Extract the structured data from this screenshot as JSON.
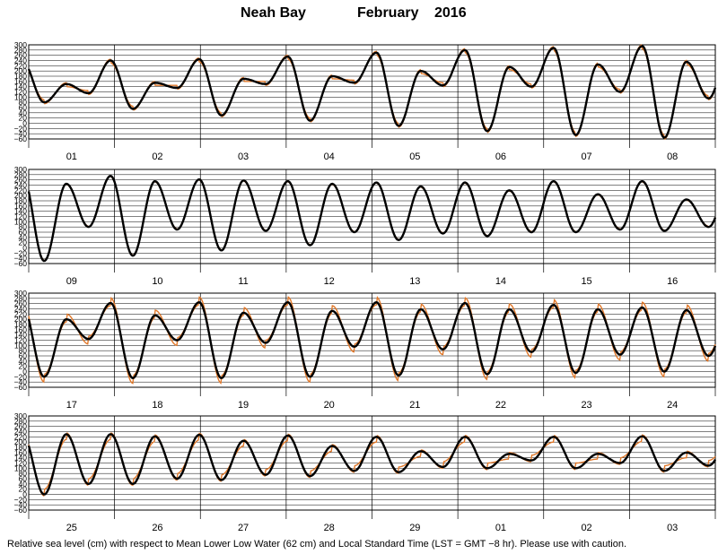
{
  "title": {
    "station": "Neah Bay",
    "month": "February",
    "year": "2016"
  },
  "caption": "Relative sea level (cm) with respect to Mean Lower Low Water (62 cm) and Local Standard Time (LST = GMT −8 hr). Please use with caution.",
  "colors": {
    "observed": "#000000",
    "predicted": "#e0782a",
    "grid": "#000000"
  },
  "chart_data": {
    "type": "line",
    "ylim": [
      -60,
      300
    ],
    "yticks": [
      300,
      280,
      260,
      240,
      220,
      200,
      180,
      160,
      140,
      120,
      100,
      80,
      60,
      40,
      20,
      0,
      -20,
      -40,
      -60
    ],
    "y_unit": "cm",
    "grid": true,
    "series": [
      {},
      {}
    ],
    "panels": [
      {
        "days": [
          "01",
          "02",
          "03",
          "04",
          "05",
          "06",
          "07",
          "08"
        ],
        "start_phase": 0.3,
        "end_phase": 31.3,
        "high_pairs": [
          [
            240,
            150
          ],
          [
            240,
            155
          ],
          [
            245,
            170
          ],
          [
            255,
            180
          ],
          [
            270,
            200
          ],
          [
            280,
            215
          ],
          [
            288,
            225
          ],
          [
            295,
            235
          ]
        ],
        "low_pairs": [
          [
            80,
            115
          ],
          [
            55,
            135
          ],
          [
            30,
            150
          ],
          [
            10,
            155
          ],
          [
            -10,
            145
          ],
          [
            -30,
            140
          ],
          [
            -45,
            120
          ],
          [
            -55,
            95
          ]
        ],
        "predicted_offset": [
          -10,
          -5
        ]
      },
      {
        "days": [
          "09",
          "10",
          "11",
          "12",
          "13",
          "14",
          "15",
          "16"
        ],
        "start_phase": 0.3,
        "end_phase": 31.3,
        "high_pairs": [
          [
            285,
            245
          ],
          [
            275,
            255
          ],
          [
            262,
            258
          ],
          [
            255,
            245
          ],
          [
            250,
            235
          ],
          [
            250,
            220
          ],
          [
            255,
            205
          ],
          [
            255,
            185
          ]
        ],
        "low_pairs": [
          [
            -50,
            80
          ],
          [
            -30,
            70
          ],
          [
            -10,
            65
          ],
          [
            10,
            60
          ],
          [
            30,
            55
          ],
          [
            45,
            60
          ],
          [
            60,
            70
          ],
          [
            65,
            80
          ]
        ],
        "predicted_offset": [
          -3,
          0
        ]
      },
      {
        "days": [
          "17",
          "18",
          "19",
          "20",
          "21",
          "22",
          "23",
          "24"
        ],
        "start_phase": 0.3,
        "end_phase": 31.3,
        "high_pairs": [
          [
            258,
            200
          ],
          [
            262,
            215
          ],
          [
            265,
            225
          ],
          [
            265,
            232
          ],
          [
            265,
            238
          ],
          [
            262,
            238
          ],
          [
            255,
            238
          ],
          [
            245,
            235
          ]
        ],
        "low_pairs": [
          [
            -20,
            125
          ],
          [
            -25,
            120
          ],
          [
            -25,
            110
          ],
          [
            -20,
            95
          ],
          [
            -15,
            85
          ],
          [
            -10,
            75
          ],
          [
            -5,
            65
          ],
          [
            0,
            60
          ]
        ],
        "predicted_offset": [
          20,
          10
        ]
      },
      {
        "days": [
          "25",
          "26",
          "27",
          "28",
          "29",
          "01",
          "02",
          "03"
        ],
        "start_phase": 0.3,
        "end_phase": 31.3,
        "high_pairs": [
          [
            235,
            230
          ],
          [
            230,
            222
          ],
          [
            228,
            205
          ],
          [
            225,
            185
          ],
          [
            220,
            165
          ],
          [
            220,
            155
          ],
          [
            220,
            155
          ],
          [
            222,
            160
          ]
        ],
        "low_pairs": [
          [
            0,
            40
          ],
          [
            40,
            60
          ],
          [
            55,
            75
          ],
          [
            70,
            90
          ],
          [
            85,
            105
          ],
          [
            100,
            130
          ],
          [
            100,
            120
          ],
          [
            90,
            110
          ]
        ],
        "predicted_offset": [
          5,
          20
        ]
      }
    ]
  }
}
